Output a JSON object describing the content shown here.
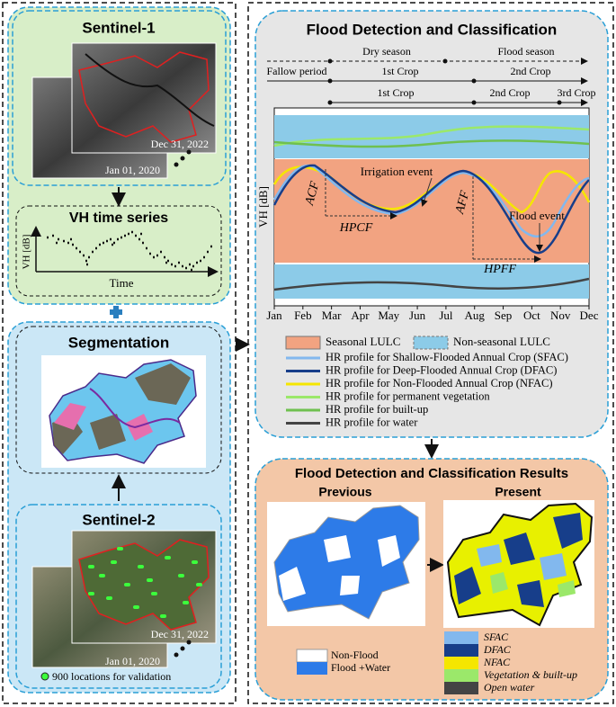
{
  "left": {
    "sentinel1": {
      "title": "Sentinel-1",
      "date_end": "Dec 31, 2022",
      "date_start": "Jan 01, 2020"
    },
    "timeseries": {
      "title": "VH time series",
      "y_label": "VH [dB]",
      "x_label": "Time"
    },
    "segmentation": {
      "title": "Segmentation"
    },
    "sentinel2": {
      "title": "Sentinel-2",
      "date_end": "Dec 31, 2022",
      "date_start": "Jan 01, 2020",
      "validation": "900 locations for validation"
    }
  },
  "method": {
    "title": "Flood Detection and Classification",
    "timeline": {
      "dry": "Dry season",
      "flood": "Flood season",
      "fallow": "Fallow period",
      "crop1a": "1st Crop",
      "crop2a": "2nd Crop",
      "crop1b": "1st Crop",
      "crop2b": "2nd Crop",
      "crop3b": "3rd Crop"
    },
    "y_label": "VH [dB]",
    "annotations": {
      "irrigation": "Irrigation event",
      "acf": "ACF",
      "hpcf": "HPCF",
      "aff": "AFF",
      "flood_event": "Flood event",
      "hpff": "HPFF"
    },
    "months": [
      "Jan",
      "Feb",
      "Mar",
      "Apr",
      "May",
      "Jun",
      "Jul",
      "Aug",
      "Sep",
      "Oct",
      "Nov",
      "Dec"
    ],
    "legend": {
      "seasonal": "Seasonal LULC",
      "non_seasonal": "Non-seasonal LULC",
      "lines": [
        "HR profile for Shallow-Flooded Annual Crop (SFAC)",
        "HR profile for Deep-Flooded Annual Crop (DFAC)",
        "HR profile for Non-Flooded Annual Crop (NFAC)",
        "HR profile for permanent vegetation",
        "HR profile for built-up",
        "HR profile for water"
      ]
    }
  },
  "results": {
    "title": "Flood Detection and Classification Results",
    "previous": "Previous",
    "present": "Present",
    "legend_previous": [
      "Non-Flood",
      "Flood +Water"
    ],
    "legend_present": [
      "SFAC",
      "DFAC",
      "NFAC",
      "Vegetation & built-up",
      "Open water"
    ]
  }
}
